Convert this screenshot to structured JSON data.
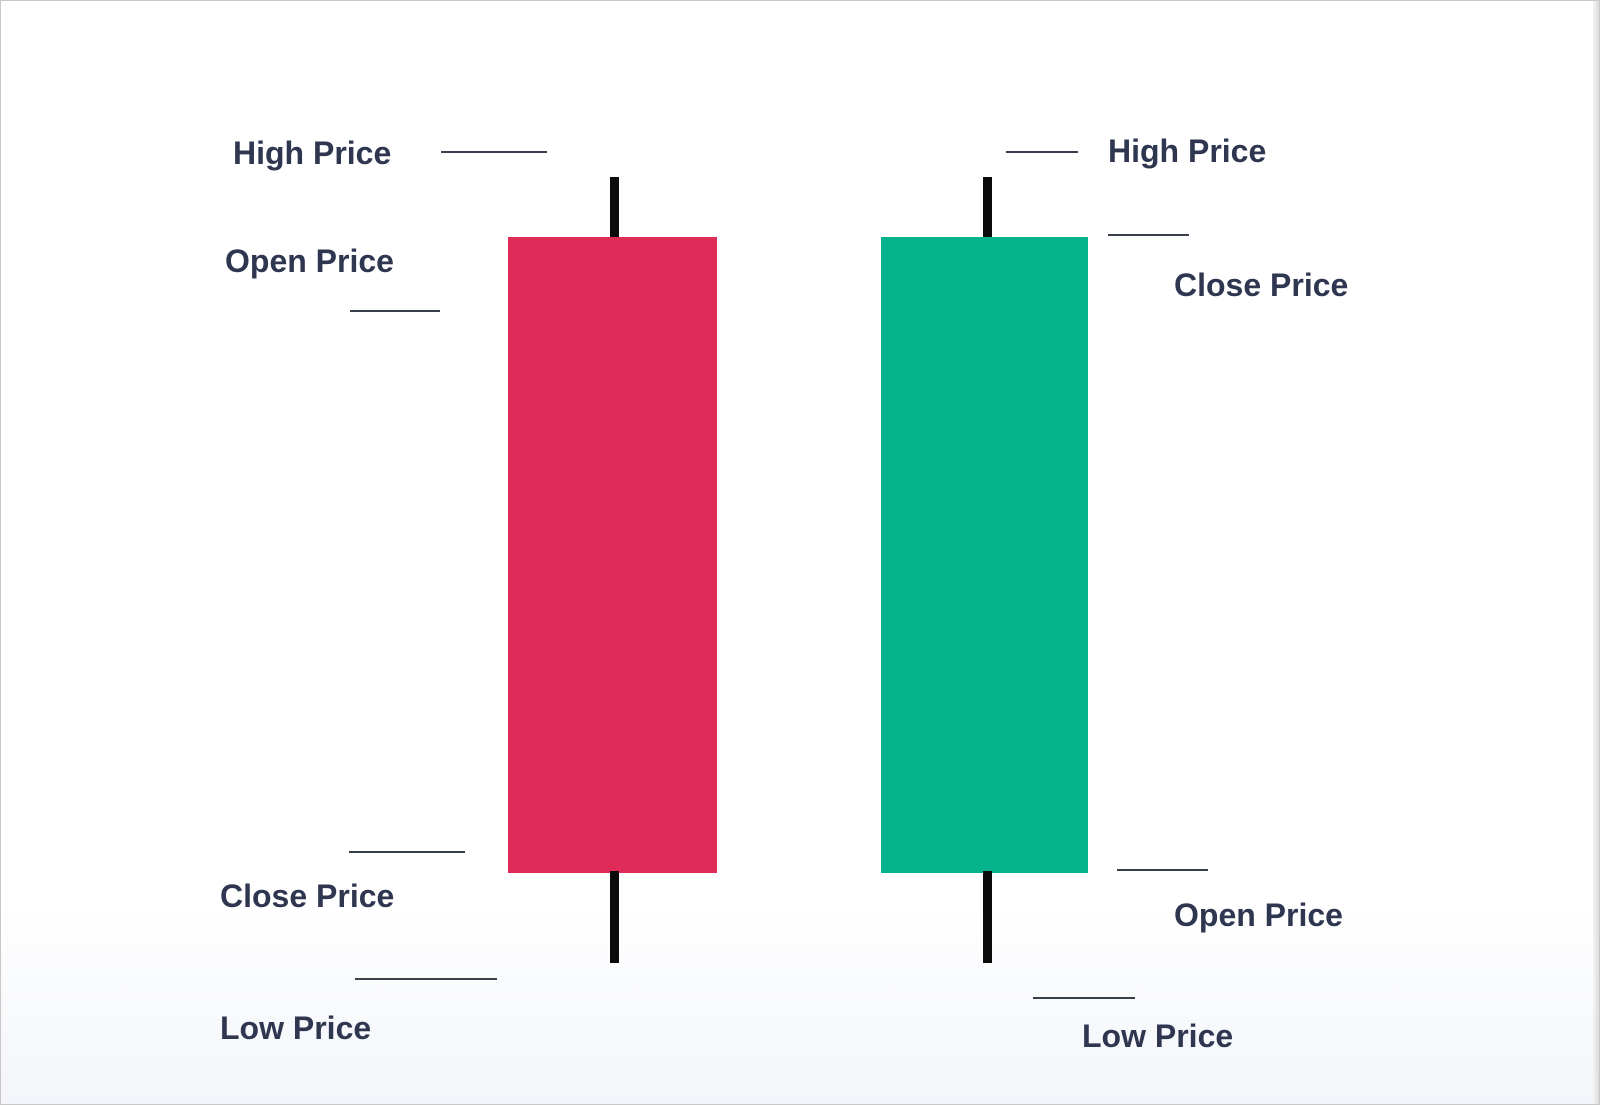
{
  "candles": {
    "bearish": {
      "color": "#de2b57",
      "labels": {
        "high": "High Price",
        "open": "Open Price",
        "close": "Close Price",
        "low": "Low Price"
      }
    },
    "bullish": {
      "color": "#04b38c",
      "labels": {
        "high": "High Price",
        "close": "Close Price",
        "open": "Open Price",
        "low": "Low Price"
      }
    }
  },
  "colors": {
    "text": "#2e3650",
    "wick": "#0b0b0b",
    "leader": "#3a3f4e"
  }
}
